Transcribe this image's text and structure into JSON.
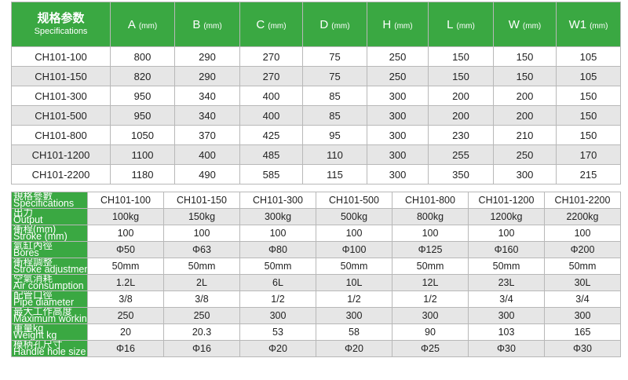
{
  "top_table": {
    "header": {
      "label_cn": "规格参数",
      "label_en": "Specifications",
      "columns": [
        {
          "name": "A",
          "unit": "(mm)"
        },
        {
          "name": "B",
          "unit": "(mm)"
        },
        {
          "name": "C",
          "unit": "(mm)"
        },
        {
          "name": "D",
          "unit": "(mm)"
        },
        {
          "name": "H",
          "unit": "(mm)"
        },
        {
          "name": "L",
          "unit": "(mm)"
        },
        {
          "name": "W",
          "unit": "(mm)"
        },
        {
          "name": "W1",
          "unit": "(mm)"
        }
      ]
    },
    "rows": [
      [
        "CH101-100",
        800,
        290,
        270,
        75,
        250,
        150,
        150,
        105
      ],
      [
        "CH101-150",
        820,
        290,
        270,
        75,
        250,
        150,
        150,
        105
      ],
      [
        "CH101-300",
        950,
        340,
        400,
        85,
        300,
        200,
        200,
        150
      ],
      [
        "CH101-500",
        950,
        340,
        400,
        85,
        300,
        200,
        200,
        150
      ],
      [
        "CH101-800",
        1050,
        370,
        425,
        95,
        300,
        230,
        210,
        150
      ],
      [
        "CH101-1200",
        1100,
        400,
        485,
        110,
        300,
        255,
        250,
        170
      ],
      [
        "CH101-2200",
        1180,
        490,
        585,
        115,
        300,
        350,
        300,
        215
      ]
    ]
  },
  "bottom_table": {
    "header": {
      "label_cn": "規格參數",
      "label_en": "Specifications",
      "models": [
        "CH101-100",
        "CH101-150",
        "CH101-300",
        "CH101-500",
        "CH101-800",
        "CH101-1200",
        "CH101-2200"
      ]
    },
    "rows": [
      {
        "label_cn": "出力",
        "label_en": "Output",
        "values": [
          "100kg",
          "150kg",
          "300kg",
          "500kg",
          "800kg",
          "1200kg",
          "2200kg"
        ]
      },
      {
        "label_cn": "衝程(mm)",
        "label_en": "Stroke (mm)",
        "values": [
          100,
          100,
          100,
          100,
          100,
          100,
          100
        ]
      },
      {
        "label_cn": "氣缸內徑",
        "label_en": "Bores",
        "values": [
          "Φ50",
          "Φ63",
          "Φ80",
          "Φ100",
          "Φ125",
          "Φ160",
          "Φ200"
        ]
      },
      {
        "label_cn": "衝程調整",
        "label_en": "Stroke adjustment",
        "values": [
          "50mm",
          "50mm",
          "50mm",
          "50mm",
          "50mm",
          "50mm",
          "50mm"
        ]
      },
      {
        "label_cn": "空氣消耗",
        "label_en": "Air consumption",
        "values": [
          "1.2L",
          "2L",
          "6L",
          "10L",
          "12L",
          "23L",
          "30L"
        ]
      },
      {
        "label_cn": "配管口徑",
        "label_en": "Pipe diameter",
        "values": [
          "3/8",
          "3/8",
          "1/2",
          "1/2",
          "1/2",
          "3/4",
          "3/4"
        ]
      },
      {
        "label_cn": "最大工作高度",
        "label_en": "Maximum working height",
        "values": [
          250,
          250,
          300,
          300,
          300,
          300,
          300
        ]
      },
      {
        "label_cn": "重量kg",
        "label_en": "Weight kg",
        "values": [
          20,
          20.3,
          53,
          58,
          90,
          103,
          165
        ]
      },
      {
        "label_cn": "模柄孔尺寸",
        "label_en": "Handle hole size",
        "values": [
          "Φ16",
          "Φ16",
          "Φ20",
          "Φ20",
          "Φ25",
          "Φ30",
          "Φ30"
        ]
      }
    ]
  }
}
